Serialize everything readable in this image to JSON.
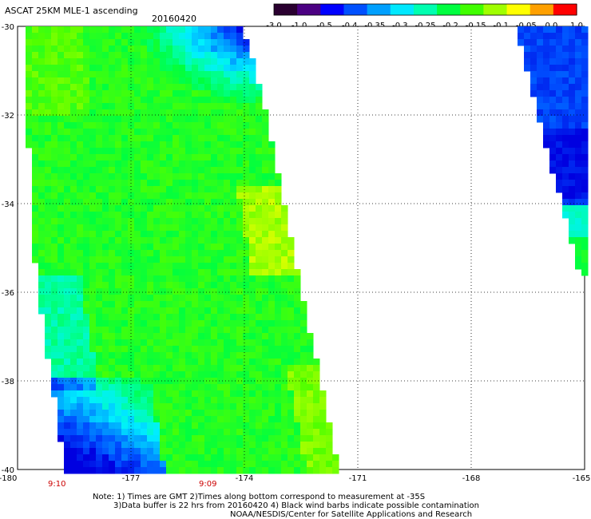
{
  "header": {
    "title": "ASCAT 25KM MLE-1 ascending",
    "date": "20160420"
  },
  "colorbar": {
    "ticks": [
      "-3.0",
      "-1.0",
      "-0.5",
      "-0.4",
      "-0.35",
      "-0.3",
      "-0.25",
      "-0.2",
      "-0.15",
      "-0.1",
      "-0.05",
      "0.0",
      "1.0"
    ],
    "colors": [
      "#2a0030",
      "#4b0082",
      "#0000ff",
      "#0050ff",
      "#00a0ff",
      "#00e8ff",
      "#00ffb0",
      "#00ff40",
      "#40ff00",
      "#a0ff00",
      "#ffff00",
      "#ffa000",
      "#ff0000"
    ]
  },
  "map": {
    "lon_labels": [
      "-180",
      "-177",
      "-174",
      "-171",
      "-168",
      "-165"
    ],
    "lat_labels": [
      "-30",
      "-32",
      "-34",
      "-36",
      "-38",
      "-40"
    ],
    "times": [
      "9:10",
      "9:09"
    ]
  },
  "notes": {
    "line1": "Note: 1) Times are GMT 2)Times along bottom correspond to measurement at -35S",
    "line2": "3)Data buffer is 22 hrs from 20160420 4) Black wind barbs indicate possible contamination",
    "line3": "NOAA/NESDIS/Center for Satellite Applications and Research"
  }
}
